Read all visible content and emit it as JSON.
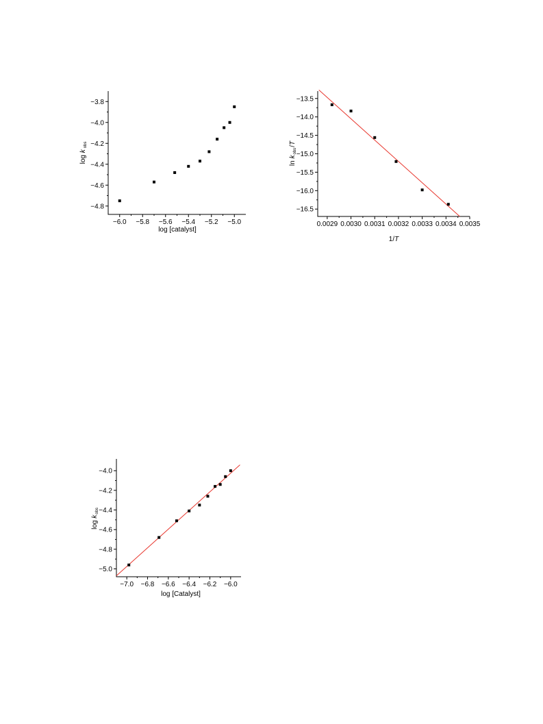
{
  "chart_data": [
    {
      "type": "scatter",
      "xlabel": "log [catalyst]",
      "ylabel": {
        "prefix": "log ",
        "italic": "k",
        "sub": "obs"
      },
      "xlim": [
        -6.1,
        -4.9
      ],
      "ylim": [
        -4.88,
        -3.7
      ],
      "xticks": [
        -6.0,
        -5.8,
        -5.6,
        -5.4,
        -5.2,
        -5.0
      ],
      "xtick_labels": [
        "−6.0",
        "−5.8",
        "−5.6",
        "−5.4",
        "−5.2",
        "−5.0"
      ],
      "yticks": [
        -4.8,
        -4.6,
        -4.4,
        -4.2,
        -4.0,
        -3.8
      ],
      "ytick_labels": [
        "−4.8",
        "−4.6",
        "−4.4",
        "−4.2",
        "−4.0",
        "−3.8"
      ],
      "fit_line": null,
      "points": {
        "x": [
          -6.0,
          -5.7,
          -5.52,
          -5.4,
          -5.3,
          -5.22,
          -5.15,
          -5.09,
          -5.04,
          -5.0
        ],
        "y": [
          -4.75,
          -4.57,
          -4.48,
          -4.42,
          -4.37,
          -4.28,
          -4.16,
          -4.05,
          -4.0,
          -3.85
        ]
      }
    },
    {
      "type": "scatter",
      "xlabel": {
        "prefix": "1/",
        "italic": "T"
      },
      "ylabel": {
        "prefix": "ln ",
        "italic": "k",
        "sub": "obs",
        "suffix": "/",
        "italic2": "T"
      },
      "xlim": [
        0.00286,
        0.0035
      ],
      "ylim": [
        -16.7,
        -13.3
      ],
      "xticks": [
        0.0029,
        0.003,
        0.0031,
        0.0032,
        0.0033,
        0.0034,
        0.0035
      ],
      "xtick_labels": [
        "0.0029",
        "0.0030",
        "0.0031",
        "0.0032",
        "0.0033",
        "0.0034",
        "0.0035"
      ],
      "yticks": [
        -16.5,
        -16.0,
        -15.5,
        -15.0,
        -14.5,
        -14.0,
        -13.5
      ],
      "ytick_labels": [
        "−16.5",
        "−16.0",
        "−15.5",
        "−15.0",
        "−14.5",
        "−14.0",
        "−13.5"
      ],
      "fit_line": {
        "x": [
          0.002865,
          0.003458
        ],
        "y": [
          -13.27,
          -16.7
        ]
      },
      "points": {
        "x": [
          0.00292,
          0.003,
          0.0031,
          0.00319,
          0.0033,
          0.00341
        ],
        "y": [
          -13.67,
          -13.84,
          -14.56,
          -15.21,
          -15.98,
          -16.37
        ]
      }
    },
    {
      "type": "scatter",
      "xlabel": "log [Catalyst]",
      "ylabel": {
        "prefix": "log ",
        "italic": "k",
        "sub": "obs"
      },
      "xlim": [
        -7.1,
        -5.9
      ],
      "ylim": [
        -5.08,
        -3.88
      ],
      "xticks": [
        -7.0,
        -6.8,
        -6.6,
        -6.4,
        -6.2,
        -6.0
      ],
      "xtick_labels": [
        "−7.0",
        "−6.8",
        "−6.6",
        "−6.4",
        "−6.2",
        "−6.0"
      ],
      "yticks": [
        -5.0,
        -4.8,
        -4.6,
        -4.4,
        -4.2,
        -4.0
      ],
      "ytick_labels": [
        "−5.0",
        "−4.8",
        "−4.6",
        "−4.4",
        "−4.2",
        "−4.0"
      ],
      "fit_line": {
        "x": [
          -7.1,
          -5.91
        ],
        "y": [
          -5.07,
          -3.94
        ]
      },
      "points": {
        "x": [
          -6.98,
          -6.69,
          -6.52,
          -6.4,
          -6.3,
          -6.22,
          -6.15,
          -6.1,
          -6.05,
          -6.0
        ],
        "y": [
          -4.96,
          -4.68,
          -4.51,
          -4.41,
          -4.35,
          -4.26,
          -4.16,
          -4.14,
          -4.06,
          -4.0
        ]
      }
    }
  ]
}
